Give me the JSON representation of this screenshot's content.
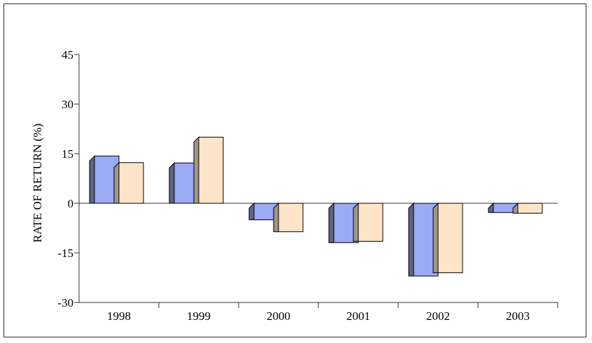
{
  "chart_data": {
    "type": "bar",
    "ylabel": "RATE OF RETURN (%)",
    "categories": [
      "1998",
      "1999",
      "2000",
      "2001",
      "2002",
      "2003"
    ],
    "ylim": [
      -30,
      45
    ],
    "yticks": [
      -30,
      -15,
      0,
      15,
      30,
      45
    ],
    "grid": false,
    "series": [
      {
        "values": [
          14.3,
          12.2,
          -5.0,
          -11.9,
          -22.0,
          -2.8
        ]
      },
      {
        "values": [
          12.3,
          20.0,
          -8.6,
          -11.5,
          -21.0,
          -3.0
        ]
      }
    ],
    "colors": {
      "series": [
        "#9aaaf5",
        "#fde3c8"
      ],
      "series_depth": [
        "#5d6585",
        "#a09684"
      ],
      "outline": "#000000",
      "axis": "#333333"
    }
  }
}
